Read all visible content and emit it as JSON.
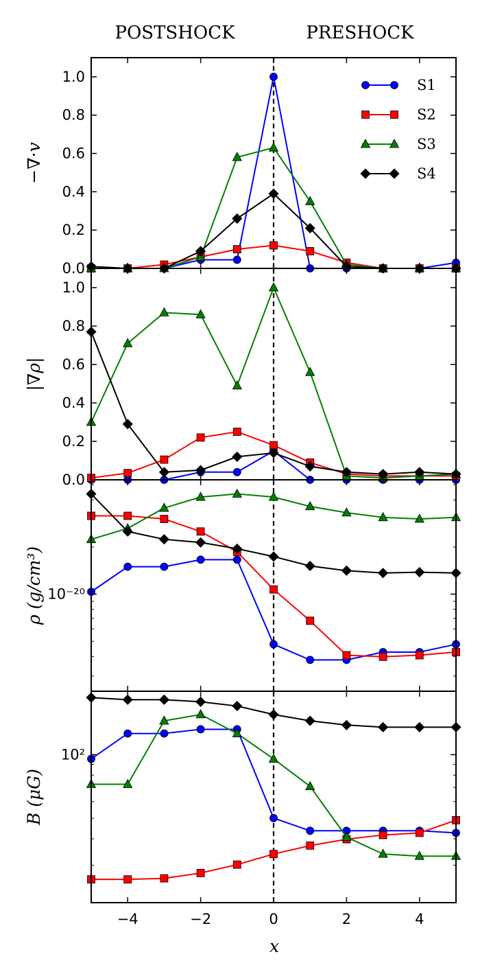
{
  "chart_data": {
    "type": "line",
    "header": {
      "left": "POSTSHOCK",
      "right": "PRESHOCK"
    },
    "xlabel": "x",
    "x": [
      -5,
      -4,
      -3,
      -2,
      -1,
      0,
      1,
      2,
      3,
      4,
      5
    ],
    "xlim": [
      -5,
      5
    ],
    "xticks": [
      -4,
      -2,
      0,
      2,
      4
    ],
    "xtick_labels": [
      "−4",
      "−2",
      "0",
      "2",
      "4"
    ],
    "shock_position": 0,
    "legend": [
      {
        "name": "S1",
        "color": "#0000ff",
        "marker": "circle"
      },
      {
        "name": "S2",
        "color": "#ff0000",
        "marker": "square"
      },
      {
        "name": "S3",
        "color": "#008000",
        "marker": "triangle"
      },
      {
        "name": "S4",
        "color": "#000000",
        "marker": "diamond"
      }
    ],
    "panels": [
      {
        "ylabel": "−∇·v",
        "scale": "linear",
        "ylim": [
          0,
          1.1
        ],
        "yticks": [
          0.0,
          0.2,
          0.4,
          0.6,
          0.8,
          1.0
        ],
        "ytick_labels": [
          "0.0",
          "0.2",
          "0.4",
          "0.6",
          "0.8",
          "1.0"
        ],
        "series": [
          {
            "name": "S1",
            "values": [
              0.0,
              0.0,
              0.0,
              0.045,
              0.045,
              1.0,
              0.0,
              0.0,
              0.0,
              0.0,
              0.03
            ]
          },
          {
            "name": "S2",
            "values": [
              0.0,
              0.0,
              0.02,
              0.06,
              0.1,
              0.12,
              0.09,
              0.03,
              0.0,
              0.0,
              0.0
            ]
          },
          {
            "name": "S3",
            "values": [
              0.0,
              0.0,
              0.0,
              0.06,
              0.58,
              0.63,
              0.35,
              0.02,
              0.0,
              0.0,
              0.0
            ]
          },
          {
            "name": "S4",
            "values": [
              0.01,
              0.0,
              0.0,
              0.09,
              0.26,
              0.39,
              0.21,
              0.01,
              0.0,
              0.0,
              0.0
            ]
          }
        ]
      },
      {
        "ylabel": "|∇ρ|",
        "scale": "linear",
        "ylim": [
          0,
          1.1
        ],
        "yticks": [
          0.0,
          0.2,
          0.4,
          0.6,
          0.8,
          1.0
        ],
        "ytick_labels": [
          "0.0",
          "0.2",
          "0.4",
          "0.6",
          "0.8",
          "1.0"
        ],
        "series": [
          {
            "name": "S1",
            "values": [
              0.0,
              0.0,
              0.0,
              0.04,
              0.04,
              0.15,
              0.0,
              0.0,
              0.0,
              0.0,
              0.0
            ]
          },
          {
            "name": "S2",
            "values": [
              0.01,
              0.035,
              0.105,
              0.22,
              0.25,
              0.18,
              0.09,
              0.03,
              0.02,
              0.02,
              0.02
            ]
          },
          {
            "name": "S3",
            "values": [
              0.3,
              0.71,
              0.87,
              0.86,
              0.49,
              1.0,
              0.56,
              0.02,
              0.01,
              0.02,
              0.03
            ]
          },
          {
            "name": "S4",
            "values": [
              0.77,
              0.29,
              0.04,
              0.05,
              0.12,
              0.14,
              0.07,
              0.04,
              0.03,
              0.04,
              0.03
            ]
          }
        ]
      },
      {
        "ylabel": "ρ (g/cm³)",
        "scale": "log",
        "ylim": [
          -20.62,
          -19.27
        ],
        "yticks": [
          -20
        ],
        "ytick_labels": [
          "10⁻²⁰"
        ],
        "series": [
          {
            "name": "S1",
            "values": [
              -19.985,
              -19.825,
              -19.825,
              -19.78,
              -19.78,
              -20.32,
              -20.42,
              -20.42,
              -20.37,
              -20.37,
              -20.32
            ]
          },
          {
            "name": "S2",
            "values": [
              -19.5,
              -19.5,
              -19.52,
              -19.6,
              -19.73,
              -19.97,
              -20.17,
              -20.39,
              -20.4,
              -20.39,
              -20.37
            ]
          },
          {
            "name": "S3",
            "values": [
              -19.65,
              -19.58,
              -19.45,
              -19.38,
              -19.36,
              -19.38,
              -19.44,
              -19.48,
              -19.51,
              -19.52,
              -19.51
            ]
          },
          {
            "name": "S4",
            "values": [
              -19.36,
              -19.6,
              -19.65,
              -19.67,
              -19.71,
              -19.76,
              -19.82,
              -19.85,
              -19.865,
              -19.86,
              -19.865
            ]
          }
        ]
      },
      {
        "ylabel": "B (μG)",
        "scale": "log",
        "ylim": [
          1.3,
          2.3
        ],
        "yticks": [
          2
        ],
        "ytick_labels": [
          "10²"
        ],
        "series": [
          {
            "name": "S1",
            "values": [
              1.98,
              2.1,
              2.1,
              2.12,
              2.12,
              1.7,
              1.64,
              1.64,
              1.64,
              1.64,
              1.63
            ]
          },
          {
            "name": "S2",
            "values": [
              1.41,
              1.41,
              1.415,
              1.44,
              1.48,
              1.53,
              1.57,
              1.6,
              1.62,
              1.63,
              1.69
            ]
          },
          {
            "name": "S3",
            "values": [
              1.86,
              1.86,
              2.16,
              2.19,
              2.1,
              1.98,
              1.85,
              1.61,
              1.53,
              1.52,
              1.52
            ]
          },
          {
            "name": "S4",
            "values": [
              2.27,
              2.26,
              2.26,
              2.25,
              2.23,
              2.19,
              2.16,
              2.14,
              2.13,
              2.13,
              2.13
            ]
          }
        ]
      }
    ]
  }
}
